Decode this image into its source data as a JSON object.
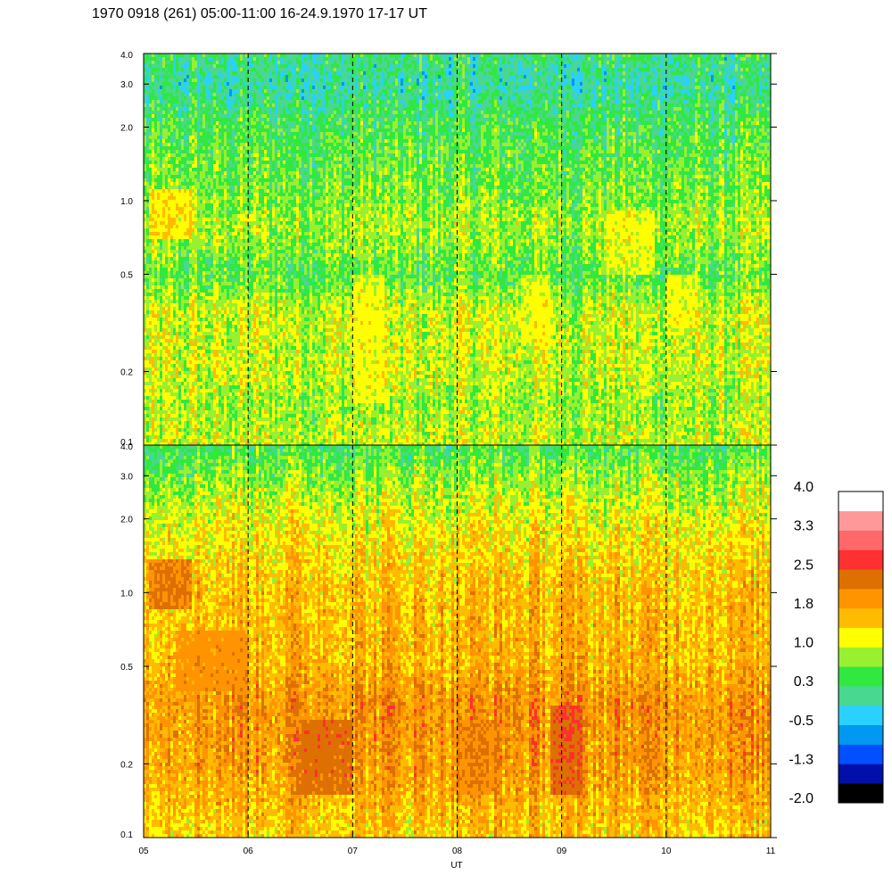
{
  "chart_data": {
    "type": "heatmap",
    "title": "1970 0918 (261) 05:00-11:00 16-24.9.1970  17-17 UT",
    "xlabel": "UT",
    "x_ticks": [
      "05",
      "06",
      "07",
      "08",
      "09",
      "10",
      "11"
    ],
    "xlim": [
      5,
      11
    ],
    "y_scale": "log",
    "ylim": [
      0.1,
      4.0
    ],
    "y_ticks": [
      {
        "value": 0.1,
        "label": "0.1"
      },
      {
        "value": 0.2,
        "label": "0.2"
      },
      {
        "value": 0.5,
        "label": "0.5"
      },
      {
        "value": 1.0,
        "label": "1.0"
      },
      {
        "value": 2.0,
        "label": "2.0"
      },
      {
        "value": 3.0,
        "label": "3.0"
      },
      {
        "value": 4.0,
        "label": "4.0"
      }
    ],
    "grid_x_dashed_at": [
      6,
      7,
      8,
      9,
      10
    ],
    "panels": [
      {
        "name": "upper",
        "profile": [
          {
            "y": 0.1,
            "level": 1.0
          },
          {
            "y": 0.15,
            "level": 0.8
          },
          {
            "y": 0.2,
            "level": 1.0
          },
          {
            "y": 0.35,
            "level": 1.0
          },
          {
            "y": 0.5,
            "level": 0.5
          },
          {
            "y": 0.8,
            "level": 0.9
          },
          {
            "y": 1.0,
            "level": 0.7
          },
          {
            "y": 2.0,
            "level": 0.4
          },
          {
            "y": 3.0,
            "level": 0.0
          },
          {
            "y": 4.0,
            "level": 0.2
          }
        ],
        "features": [
          {
            "x0": 5.05,
            "x1": 5.45,
            "y0": 0.7,
            "y1": 1.1,
            "level": 1.6
          },
          {
            "x0": 7.0,
            "x1": 7.3,
            "y0": 0.15,
            "y1": 0.5,
            "level": 1.3
          },
          {
            "x0": 8.6,
            "x1": 8.9,
            "y0": 0.25,
            "y1": 0.5,
            "level": 1.3
          },
          {
            "x0": 9.4,
            "x1": 9.9,
            "y0": 0.5,
            "y1": 0.9,
            "level": 1.3
          },
          {
            "x0": 10.0,
            "x1": 10.3,
            "y0": 0.3,
            "y1": 0.5,
            "level": 1.3
          }
        ]
      },
      {
        "name": "lower",
        "profile": [
          {
            "y": 0.1,
            "level": 1.5
          },
          {
            "y": 0.2,
            "level": 1.9
          },
          {
            "y": 0.35,
            "level": 2.0
          },
          {
            "y": 0.5,
            "level": 1.7
          },
          {
            "y": 1.0,
            "level": 1.6
          },
          {
            "y": 2.0,
            "level": 1.2
          },
          {
            "y": 3.0,
            "level": 0.8
          },
          {
            "y": 4.0,
            "level": 0.4
          }
        ],
        "features": [
          {
            "x0": 5.05,
            "x1": 5.45,
            "y0": 0.85,
            "y1": 1.35,
            "level": 2.6
          },
          {
            "x0": 5.3,
            "x1": 6.0,
            "y0": 0.4,
            "y1": 0.7,
            "level": 2.1
          },
          {
            "x0": 6.5,
            "x1": 7.0,
            "y0": 0.15,
            "y1": 0.3,
            "level": 2.6
          },
          {
            "x0": 8.9,
            "x1": 9.2,
            "y0": 0.15,
            "y1": 0.35,
            "level": 2.7
          },
          {
            "x0": 8.0,
            "x1": 8.4,
            "y0": 0.15,
            "y1": 0.3,
            "level": 2.2
          }
        ]
      }
    ],
    "colorbar": {
      "min": -2.0,
      "max": 4.0,
      "labels": [
        "4.0",
        "3.3",
        "2.5",
        "1.8",
        "1.0",
        "0.3",
        "-0.5",
        "-1.3",
        "-2.0"
      ],
      "colors": [
        "#000000",
        "#0010a8",
        "#0050ff",
        "#0098f0",
        "#2ad0ff",
        "#48d890",
        "#30e840",
        "#98f030",
        "#ffff00",
        "#ffbb00",
        "#ff9400",
        "#dd7000",
        "#ff3030",
        "#ff6868",
        "#ff9898",
        "#ffffff"
      ]
    }
  }
}
